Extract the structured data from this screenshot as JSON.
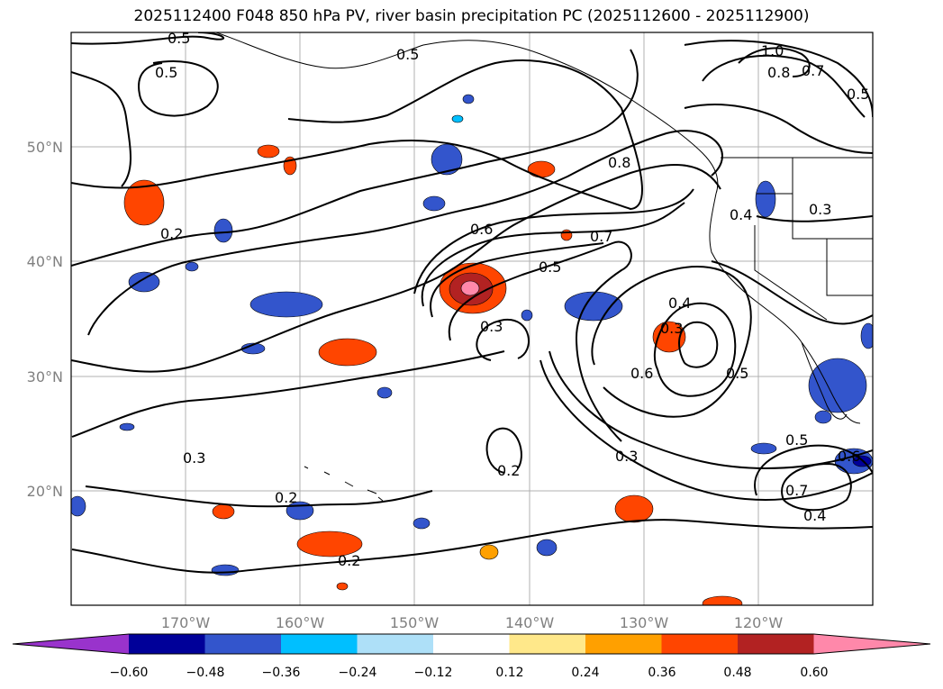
{
  "title": "2025112400 F048 850 hPa PV, river basin precipitation PC (2025112600 - 2025112900)",
  "axes": {
    "lat_ticks": [
      "50°N",
      "40°N",
      "30°N",
      "20°N"
    ],
    "lon_ticks": [
      "170°W",
      "160°W",
      "150°W",
      "140°W",
      "130°W",
      "120°W"
    ],
    "grid": true
  },
  "map_extent": {
    "lon": [
      -180,
      -110
    ],
    "lat": [
      10,
      60
    ]
  },
  "contour_labels": [
    "0.5",
    "0.5",
    "0.5",
    "1.0",
    "0.8",
    "0.7",
    "0.5",
    "0.2",
    "0.8",
    "0.6",
    "0.7",
    "0.5",
    "0.4",
    "0.3",
    "0.3",
    "0.4",
    "0.3",
    "0.6",
    "0.5",
    "0.3",
    "0.2",
    "0.3",
    "0.2",
    "0.2",
    "0.5",
    "0.6",
    "0.7",
    "0.4"
  ],
  "colorbar": {
    "ticks": [
      "−0.60",
      "−0.48",
      "−0.36",
      "−0.24",
      "−0.12",
      "0.12",
      "0.24",
      "0.36",
      "0.48",
      "0.60"
    ],
    "colors": [
      "#9933cc",
      "#000099",
      "#3355cc",
      "#00bfff",
      "#aee0f8",
      "#ffffff",
      "#ffe88a",
      "#ffa000",
      "#ff4500",
      "#b22222",
      "#ff88aa"
    ],
    "extend": "both"
  },
  "colors": {
    "contour": "#000000",
    "grid": "#b0b0b0",
    "coast": "#000000"
  }
}
